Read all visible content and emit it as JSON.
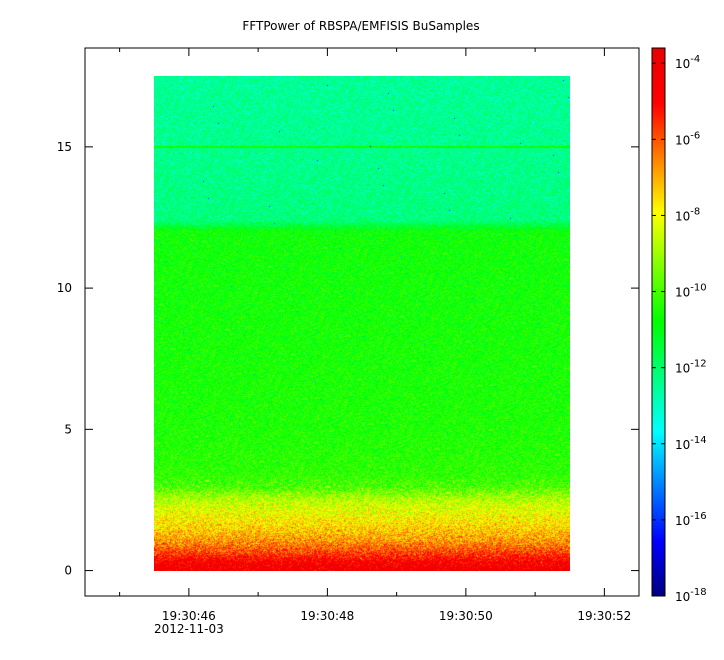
{
  "chart_data": {
    "type": "heatmap",
    "title": "FFTPower of RBSPA/EMFISIS  BuSamples",
    "xlabel": "",
    "ylabel": "",
    "x": {
      "ticks": [
        "19:30:46",
        "19:30:48",
        "19:30:50",
        "19:30:52"
      ],
      "tick_seconds": [
        46,
        48,
        50,
        52
      ],
      "minor_tick_seconds": [
        45,
        47,
        49,
        51
      ],
      "range_seconds": [
        44.5,
        52.5
      ],
      "date_label": "2012-11-03",
      "data_range_seconds": [
        45.5,
        51.5
      ]
    },
    "y": {
      "ticks": [
        "0",
        "5",
        "10",
        "15"
      ],
      "tick_values": [
        0,
        5,
        10,
        15
      ],
      "range": [
        -0.9,
        18.5
      ],
      "data_range": [
        0.0,
        17.5
      ]
    },
    "colorbar": {
      "scale": "log",
      "range_exponents": [
        -18,
        -3.6
      ],
      "ticks": [
        {
          "base": "10",
          "exp": "-4",
          "value_exp": -4
        },
        {
          "base": "10",
          "exp": "-6",
          "value_exp": -6
        },
        {
          "base": "10",
          "exp": "-8",
          "value_exp": -8
        },
        {
          "base": "10",
          "exp": "-10",
          "value_exp": -10
        },
        {
          "base": "10",
          "exp": "-12",
          "value_exp": -12
        },
        {
          "base": "10",
          "exp": "-14",
          "value_exp": -14
        },
        {
          "base": "10",
          "exp": "-16",
          "value_exp": -16
        },
        {
          "base": "10",
          "exp": "-18",
          "value_exp": -18
        }
      ],
      "colors": [
        "#00007f",
        "#0000ff",
        "#007fff",
        "#00ffff",
        "#00ff7f",
        "#00ff00",
        "#7fff00",
        "#ffff00",
        "#ff7f00",
        "#ff0000",
        "#e80000"
      ]
    },
    "spectral_profile": [
      {
        "y": 0.0,
        "log_power": -4.2
      },
      {
        "y": 0.3,
        "log_power": -4.6
      },
      {
        "y": 0.6,
        "log_power": -5.6
      },
      {
        "y": 1.0,
        "log_power": -6.6
      },
      {
        "y": 1.5,
        "log_power": -7.4
      },
      {
        "y": 2.0,
        "log_power": -8.0
      },
      {
        "y": 2.5,
        "log_power": -8.7
      },
      {
        "y": 3.0,
        "log_power": -10.0
      },
      {
        "y": 3.5,
        "log_power": -10.3
      },
      {
        "y": 5.0,
        "log_power": -10.5
      },
      {
        "y": 8.0,
        "log_power": -10.6
      },
      {
        "y": 12.0,
        "log_power": -10.7
      },
      {
        "y": 12.4,
        "log_power": -12.2
      },
      {
        "y": 15.0,
        "log_power": -12.4
      },
      {
        "y": 17.5,
        "log_power": -12.5
      }
    ],
    "horizontal_line": {
      "y": 15.0,
      "log_power": -10.6
    },
    "grid": false
  }
}
